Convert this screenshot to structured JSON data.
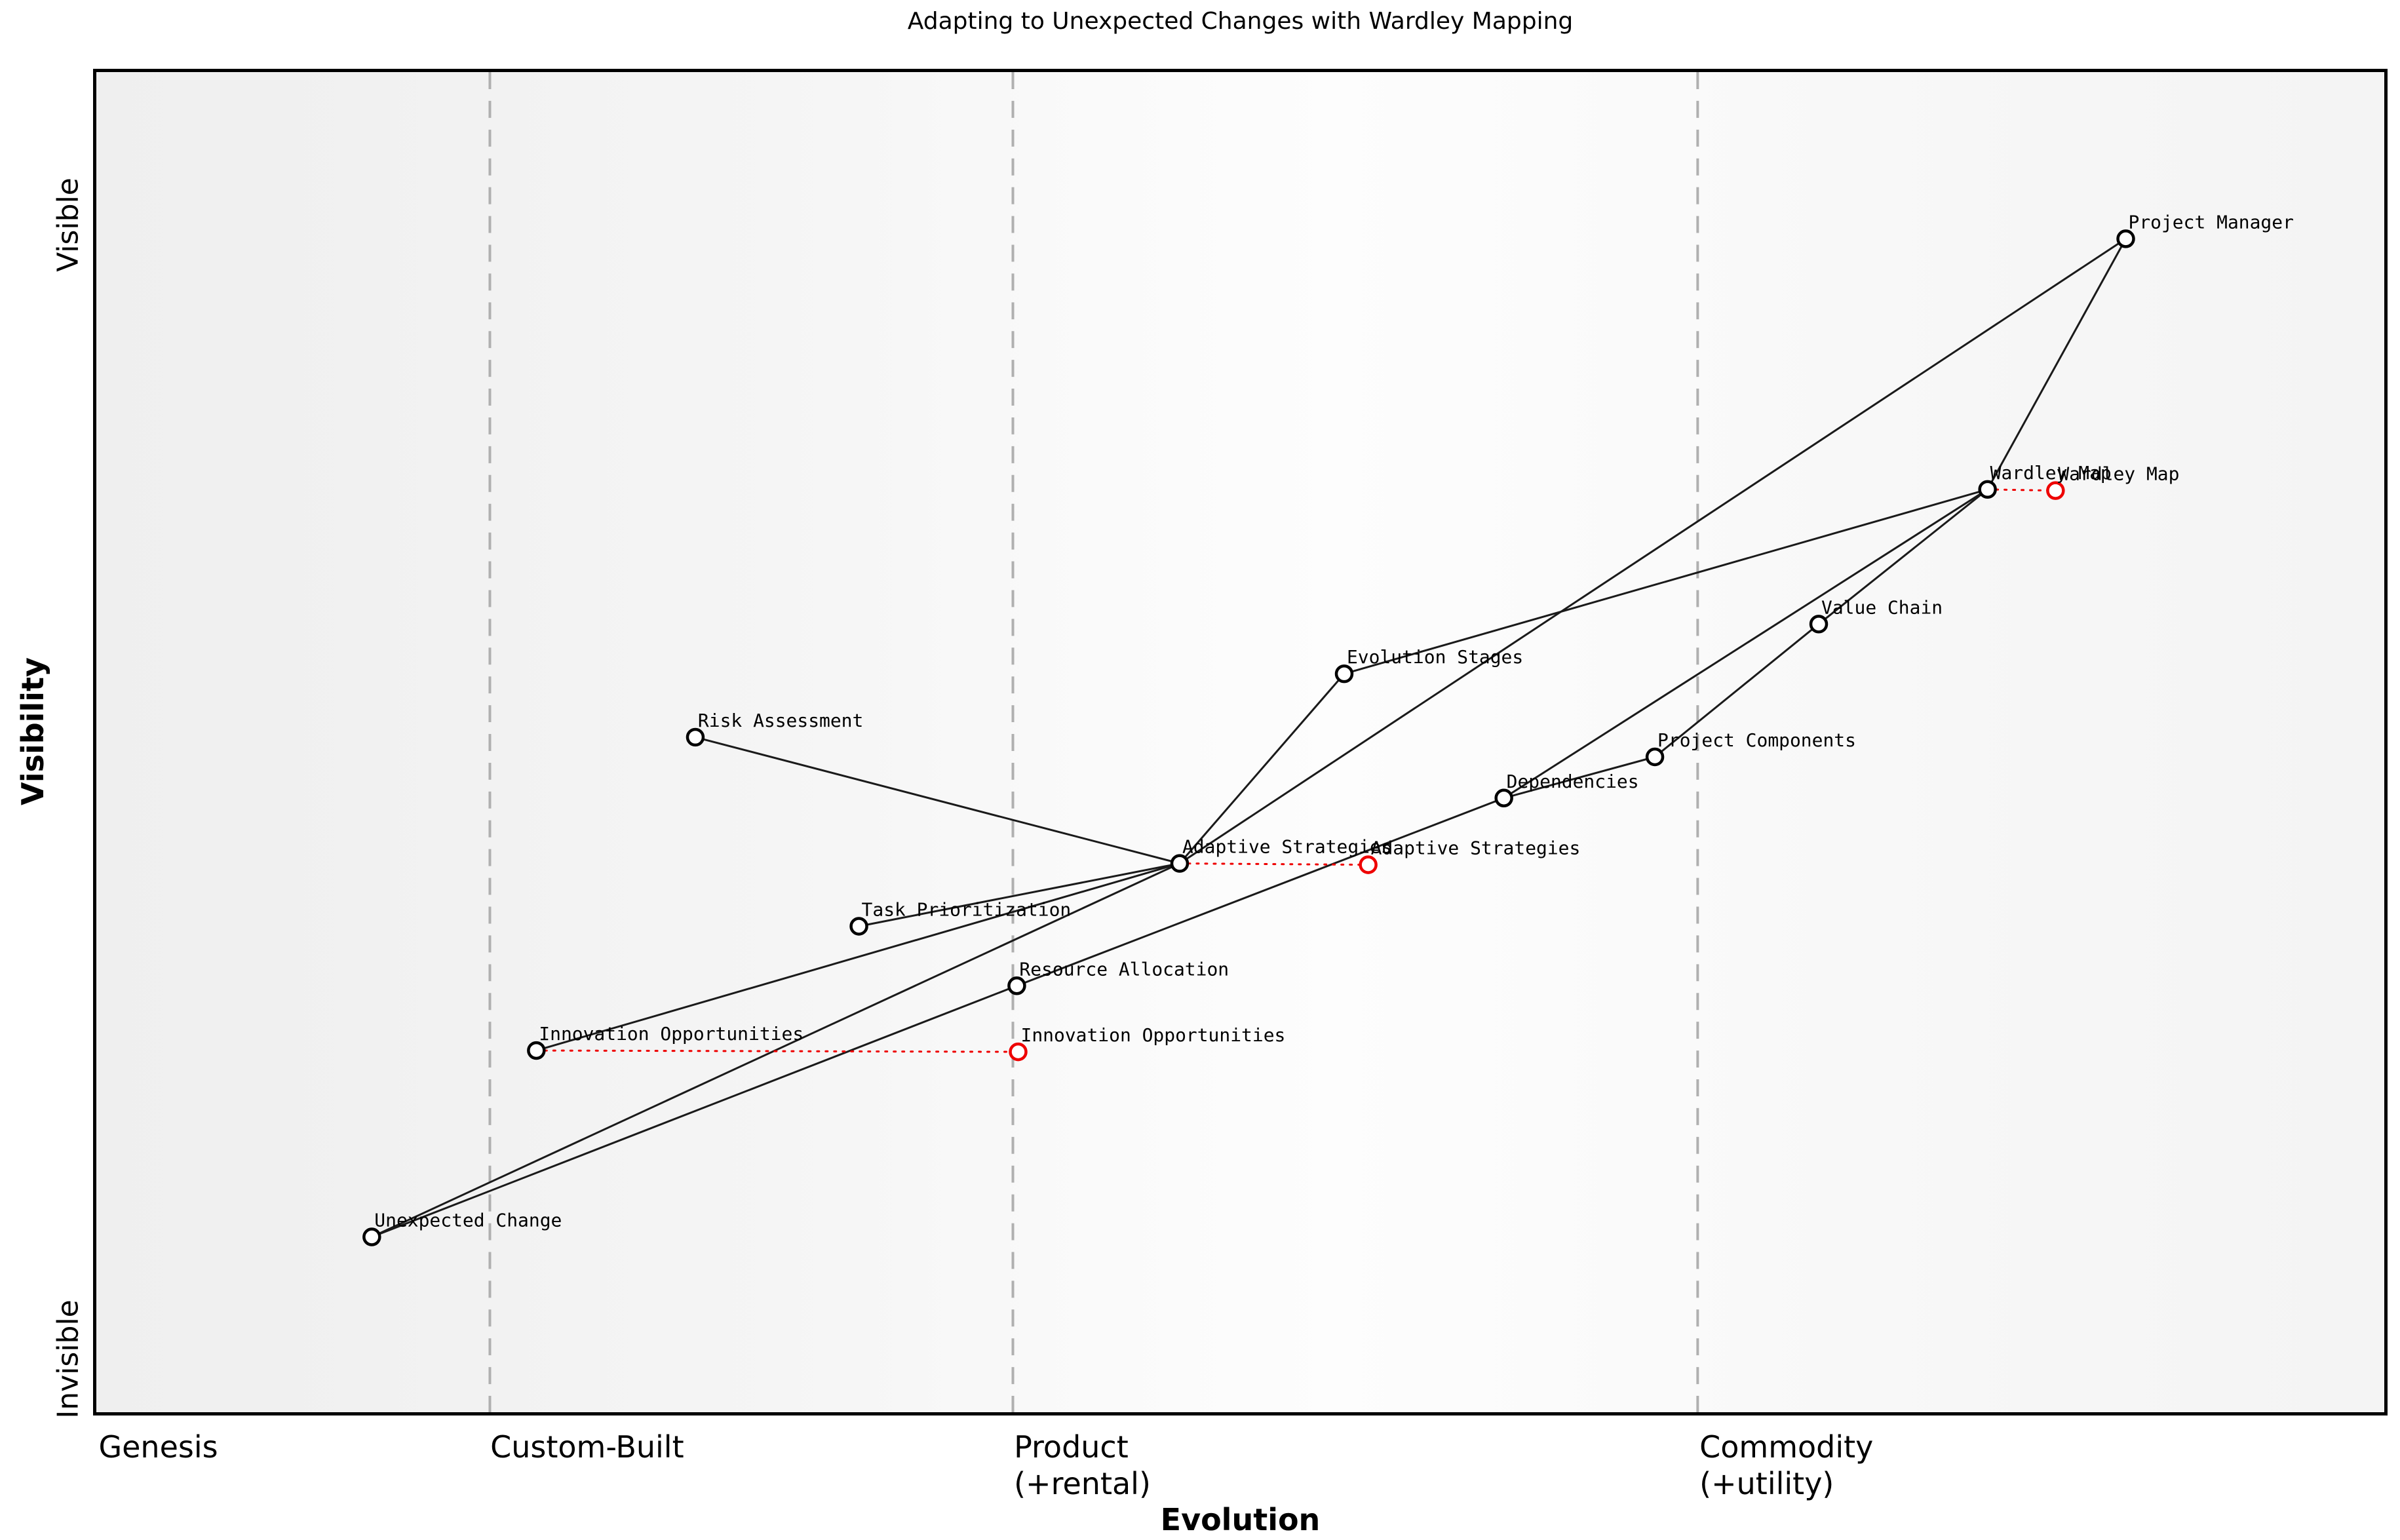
{
  "title": "Adapting to Unexpected Changes with Wardley Mapping",
  "axes": {
    "x_label": "Evolution",
    "y_label": "Visibility",
    "y_ticks": [
      "Visible",
      "Invisible"
    ],
    "x_stages": [
      {
        "label": "Genesis",
        "fx": 0.001
      },
      {
        "label": "Custom-Built",
        "fx": 0.172
      },
      {
        "label": "Product\n(+rental)",
        "fx": 0.4006
      },
      {
        "label": "Commodity\n(+utility)",
        "fx": 0.6999
      }
    ]
  },
  "chart_data": {
    "type": "scatter",
    "subtype": "wardley-map",
    "title": "Adapting to Unexpected Changes with Wardley Mapping",
    "xlabel": "Evolution",
    "ylabel": "Visibility",
    "coord_note": "fx,fy are fractions of the plot area measured from its top-left corner",
    "boundaries_fx": [
      0.172,
      0.4006,
      0.6999
    ],
    "nodes": [
      {
        "id": "unexpected_change",
        "label": "Unexpected Change",
        "fx": 0.1204,
        "fy": 0.8692
      },
      {
        "id": "innovation_opportunities",
        "label": "Innovation Opportunities",
        "fx": 0.1923,
        "fy": 0.7301
      },
      {
        "id": "task_prioritization",
        "label": "Task Prioritization",
        "fx": 0.3333,
        "fy": 0.6374
      },
      {
        "id": "resource_allocation",
        "label": "Resource Allocation",
        "fx": 0.4023,
        "fy": 0.6818
      },
      {
        "id": "risk_assessment",
        "label": "Risk Assessment",
        "fx": 0.2618,
        "fy": 0.4963
      },
      {
        "id": "adaptive_strategies",
        "label": "Adaptive Strategies",
        "fx": 0.4735,
        "fy": 0.5905
      },
      {
        "id": "evolution_stages",
        "label": "Evolution Stages",
        "fx": 0.5454,
        "fy": 0.449
      },
      {
        "id": "dependencies",
        "label": "Dependencies",
        "fx": 0.6152,
        "fy": 0.5417
      },
      {
        "id": "project_components",
        "label": "Project Components",
        "fx": 0.6812,
        "fy": 0.511
      },
      {
        "id": "value_chain",
        "label": "Value Chain",
        "fx": 0.7528,
        "fy": 0.4119
      },
      {
        "id": "wardley_map",
        "label": "Wardley Map",
        "fx": 0.8266,
        "fy": 0.3114
      },
      {
        "id": "project_manager",
        "label": "Project Manager",
        "fx": 0.887,
        "fy": 0.1244
      }
    ],
    "edges": [
      [
        "project_manager",
        "wardley_map"
      ],
      [
        "project_manager",
        "adaptive_strategies"
      ],
      [
        "wardley_map",
        "evolution_stages"
      ],
      [
        "wardley_map",
        "value_chain"
      ],
      [
        "wardley_map",
        "dependencies"
      ],
      [
        "value_chain",
        "project_components"
      ],
      [
        "project_components",
        "dependencies"
      ],
      [
        "dependencies",
        "resource_allocation"
      ],
      [
        "resource_allocation",
        "unexpected_change"
      ],
      [
        "adaptive_strategies",
        "evolution_stages"
      ],
      [
        "adaptive_strategies",
        "risk_assessment"
      ],
      [
        "adaptive_strategies",
        "task_prioritization"
      ],
      [
        "adaptive_strategies",
        "innovation_opportunities"
      ],
      [
        "adaptive_strategies",
        "unexpected_change"
      ]
    ],
    "movements": [
      {
        "from": "wardley_map",
        "label": "Wardley Map",
        "fx": 0.8563,
        "fy": 0.3123
      },
      {
        "from": "adaptive_strategies",
        "label": "Adaptive Strategies",
        "fx": 0.5559,
        "fy": 0.5915
      },
      {
        "from": "innovation_opportunities",
        "label": "Innovation Opportunities",
        "fx": 0.4029,
        "fy": 0.7311
      }
    ],
    "colors": {
      "node_stroke": "#000000",
      "node_fill": "#ffffff",
      "evolved_stroke": "#ee0000",
      "edge": "#1a1a1a",
      "boundary": "#b0b0b0",
      "movement": "#ee0000"
    }
  }
}
